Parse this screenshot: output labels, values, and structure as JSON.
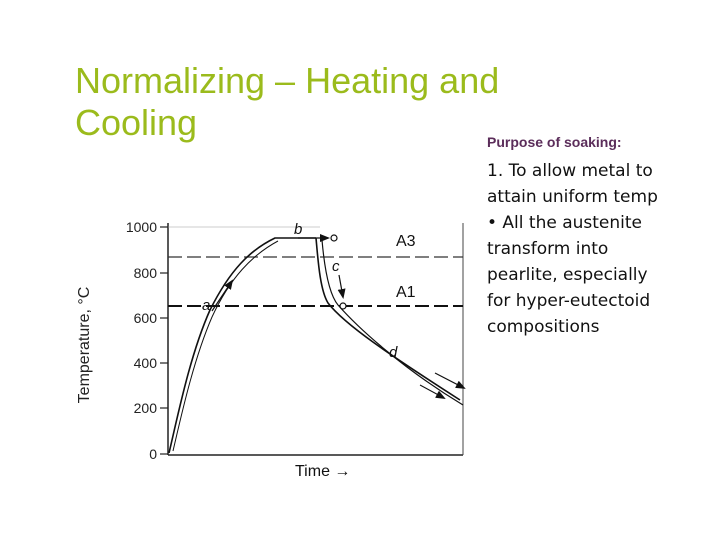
{
  "slide": {
    "title_line1": "Normalizing – Heating and",
    "title_line2": "Cooling",
    "title_color": "#9bbb1c"
  },
  "purpose": {
    "heading": "Purpose of soaking:",
    "heading_color": "#5b2d5a",
    "lines": [
      "1. To allow metal to",
      "attain uniform temp",
      "•  All the austenite",
      "transform into",
      "pearlite, especially",
      "for hyper-eutectoid",
      "compositions"
    ]
  },
  "diagram": {
    "y_axis_label": "Temperature, °C",
    "x_axis_label": "Time →",
    "y_ticks": [
      "1000",
      "800",
      "600",
      "400",
      "200",
      "0"
    ],
    "lines": {
      "upper": "A3",
      "lower": "A1"
    },
    "points": [
      "a",
      "b",
      "c",
      "d"
    ]
  }
}
